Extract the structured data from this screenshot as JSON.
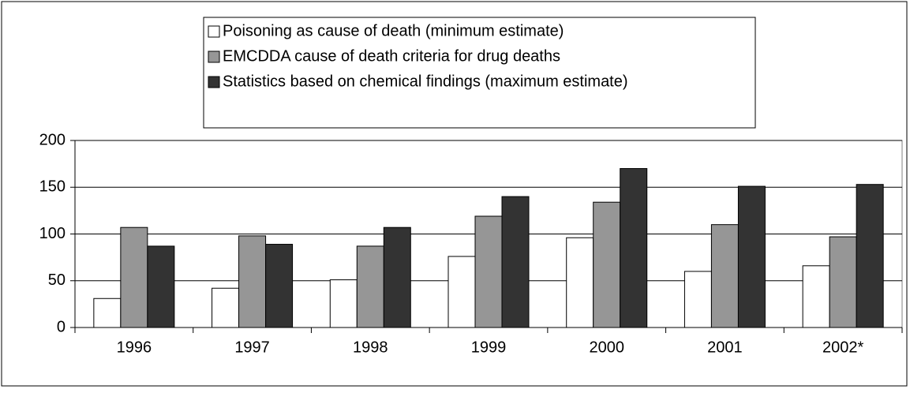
{
  "chart_data": {
    "type": "bar",
    "categories": [
      "1996",
      "1997",
      "1998",
      "1999",
      "2000",
      "2001",
      "2002*"
    ],
    "series": [
      {
        "name": "Poisoning as cause of death (minimum estimate)",
        "color": "#ffffff",
        "values": [
          31,
          42,
          51,
          76,
          96,
          60,
          66
        ]
      },
      {
        "name": "EMCDDA cause of death criteria for drug deaths",
        "color": "#969696",
        "values": [
          107,
          98,
          87,
          119,
          134,
          110,
          97
        ]
      },
      {
        "name": "Statistics based on chemical findings (maximum estimate)",
        "color": "#333333",
        "values": [
          87,
          89,
          107,
          140,
          170,
          151,
          153
        ]
      }
    ],
    "ylim": [
      0,
      200
    ],
    "yticks": [
      0,
      50,
      100,
      150,
      200
    ],
    "grid": true,
    "legend": "top"
  }
}
